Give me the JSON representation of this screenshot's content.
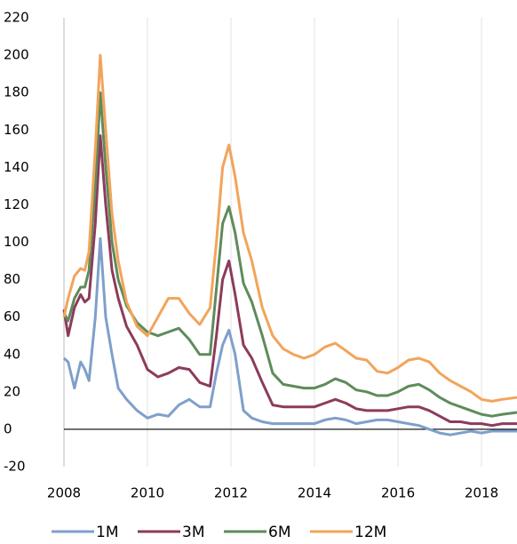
{
  "chart_data": {
    "type": "line",
    "x": [
      2008.0,
      2008.1,
      2008.25,
      2008.4,
      2008.5,
      2008.6,
      2008.75,
      2008.87,
      2009.0,
      2009.15,
      2009.3,
      2009.5,
      2009.75,
      2010.0,
      2010.25,
      2010.5,
      2010.75,
      2011.0,
      2011.25,
      2011.5,
      2011.65,
      2011.8,
      2011.95,
      2012.1,
      2012.3,
      2012.5,
      2012.75,
      2013.0,
      2013.25,
      2013.5,
      2013.75,
      2014.0,
      2014.25,
      2014.5,
      2014.75,
      2015.0,
      2015.25,
      2015.5,
      2015.75,
      2016.0,
      2016.25,
      2016.5,
      2016.75,
      2017.0,
      2017.25,
      2017.5,
      2017.75,
      2018.0,
      2018.25,
      2018.5,
      2018.85
    ],
    "series": [
      {
        "name": "1M",
        "color": "#7f9fcb",
        "values": [
          38,
          36,
          22,
          36,
          32,
          26,
          60,
          102,
          60,
          40,
          22,
          16,
          10,
          6,
          8,
          7,
          13,
          16,
          12,
          12,
          30,
          45,
          53,
          40,
          10,
          6,
          4,
          3,
          3,
          3,
          3,
          3,
          5,
          6,
          5,
          3,
          4,
          5,
          5,
          4,
          3,
          2,
          0,
          -2,
          -3,
          -2,
          -1,
          -2,
          -1,
          -1,
          -1
        ]
      },
      {
        "name": "3M",
        "color": "#8c3b5c",
        "values": [
          64,
          50,
          65,
          72,
          68,
          70,
          110,
          157,
          120,
          85,
          70,
          55,
          45,
          32,
          28,
          30,
          33,
          32,
          25,
          23,
          50,
          80,
          90,
          72,
          45,
          38,
          25,
          13,
          12,
          12,
          12,
          12,
          14,
          16,
          14,
          11,
          10,
          10,
          10,
          11,
          12,
          12,
          10,
          7,
          4,
          4,
          3,
          3,
          2,
          3,
          3
        ]
      },
      {
        "name": "6M",
        "color": "#5f8b5b",
        "values": [
          62,
          58,
          70,
          76,
          76,
          85,
          130,
          180,
          140,
          100,
          80,
          66,
          57,
          52,
          50,
          52,
          54,
          48,
          40,
          40,
          75,
          110,
          119,
          105,
          78,
          68,
          50,
          30,
          24,
          23,
          22,
          22,
          24,
          27,
          25,
          21,
          20,
          18,
          18,
          20,
          23,
          24,
          21,
          17,
          14,
          12,
          10,
          8,
          7,
          8,
          9
        ]
      },
      {
        "name": "12M",
        "color": "#f2a45a",
        "values": [
          60,
          70,
          82,
          86,
          85,
          95,
          150,
          200,
          160,
          115,
          90,
          68,
          55,
          50,
          60,
          70,
          70,
          62,
          56,
          65,
          100,
          140,
          152,
          135,
          105,
          90,
          65,
          50,
          43,
          40,
          38,
          40,
          44,
          46,
          42,
          38,
          37,
          31,
          30,
          33,
          37,
          38,
          36,
          30,
          26,
          23,
          20,
          16,
          15,
          16,
          17
        ]
      }
    ],
    "xlim": [
      2008,
      2018.85
    ],
    "xticks": [
      2008,
      2010,
      2012,
      2014,
      2016,
      2018
    ],
    "ylim": [
      -20,
      220
    ],
    "yticks": [
      -20,
      0,
      20,
      40,
      60,
      80,
      100,
      120,
      140,
      160,
      180,
      200,
      220
    ],
    "grid": true
  }
}
